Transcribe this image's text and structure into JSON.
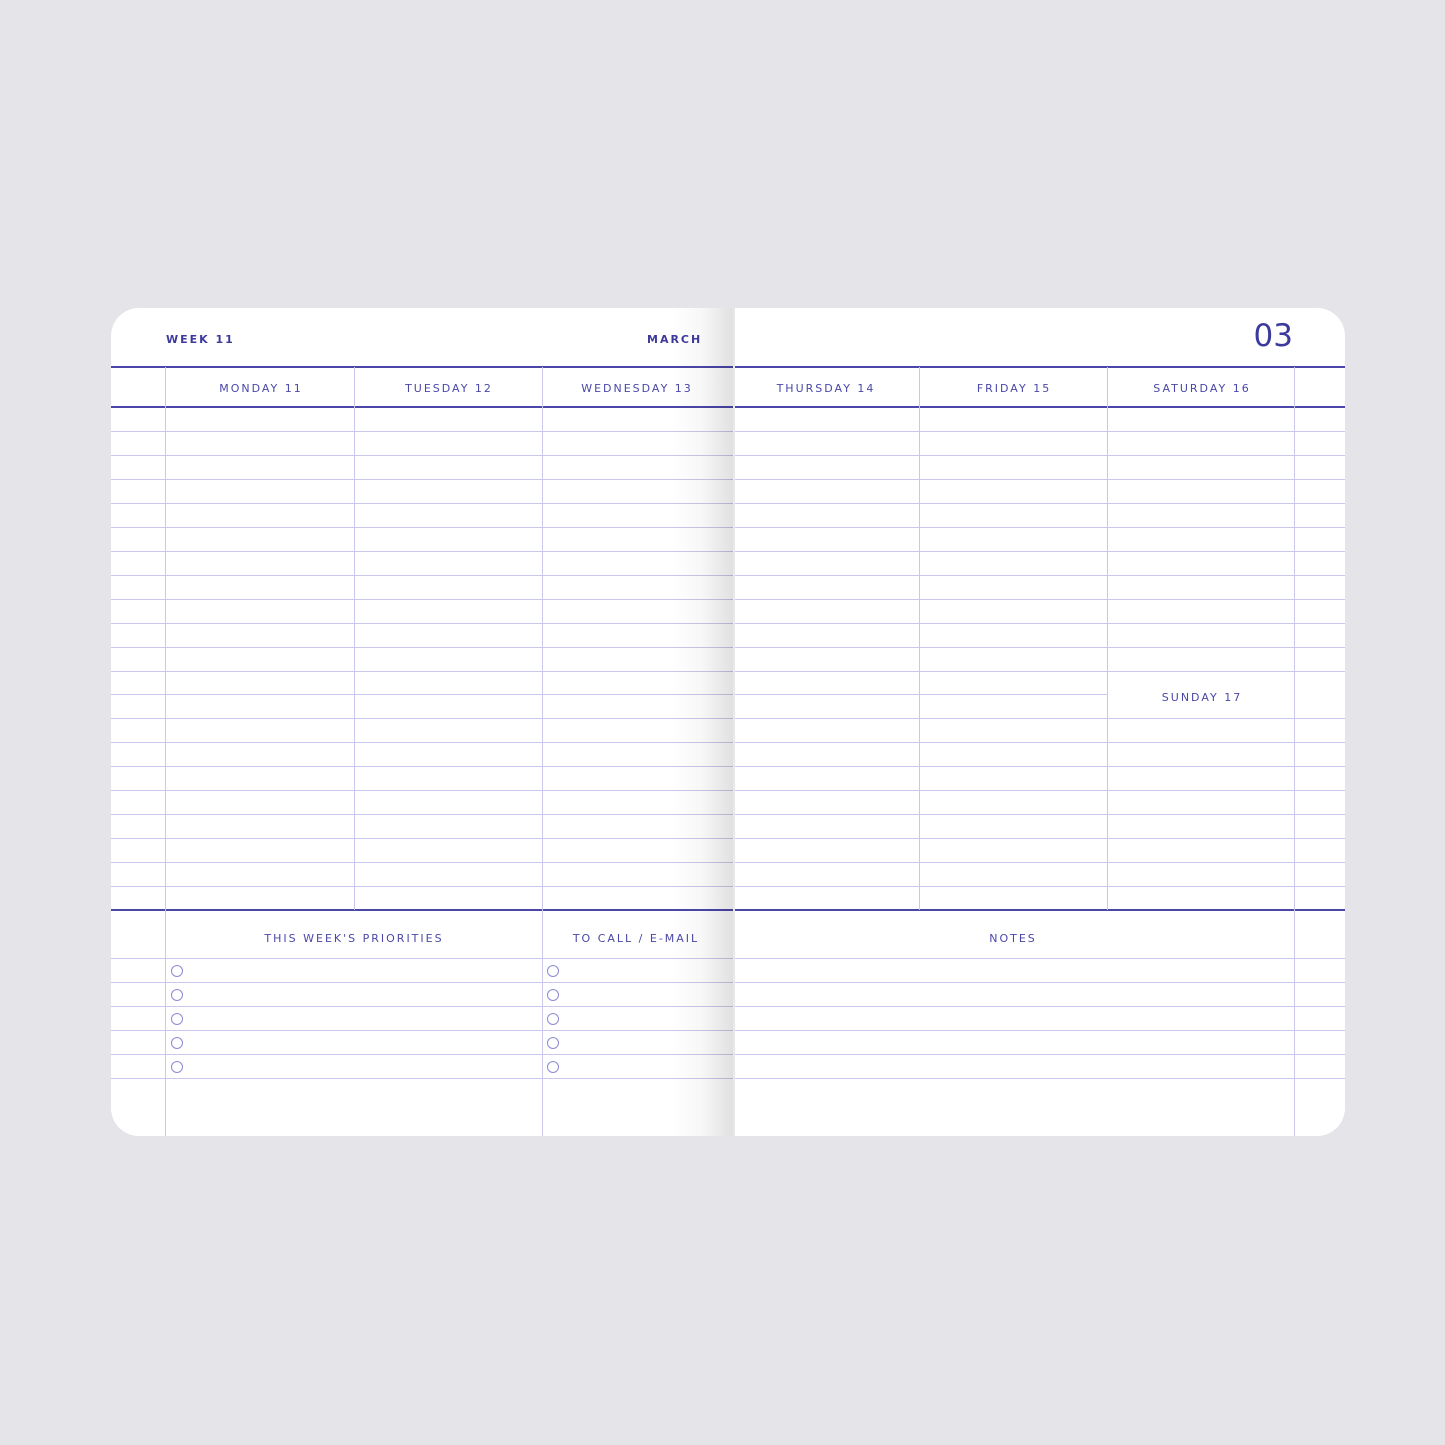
{
  "header": {
    "week": "WEEK 11",
    "month": "MARCH",
    "month_number": "03"
  },
  "days": [
    "MONDAY 11",
    "TUESDAY 12",
    "WEDNESDAY 13",
    "THURSDAY 14",
    "FRIDAY 15",
    "SATURDAY 16"
  ],
  "sunday": "SUNDAY 17",
  "sections": {
    "priorities": "THIS WEEK'S PRIORITIES",
    "to_call": "TO CALL / E-MAIL",
    "notes": "NOTES"
  },
  "checkbox_count": 5,
  "line_color": "#c9c8ec",
  "accent": "#4a47a8"
}
